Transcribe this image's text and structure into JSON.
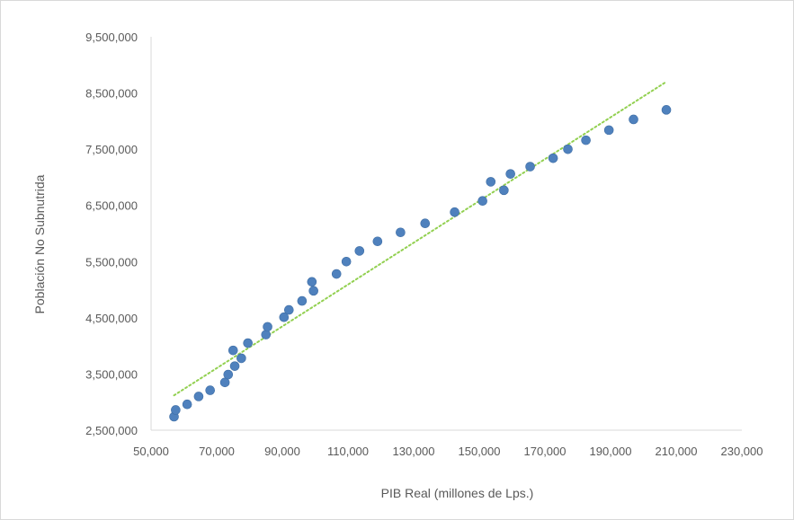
{
  "chart_data": {
    "type": "scatter",
    "title": "",
    "xlabel": "PIB Real (millones de Lps.)",
    "ylabel": "Población No Subnutrida",
    "xlim": [
      50000,
      230000
    ],
    "ylim": [
      2500000,
      9500000
    ],
    "x_ticks": [
      50000,
      70000,
      90000,
      110000,
      130000,
      150000,
      170000,
      190000,
      210000,
      230000
    ],
    "x_tick_labels": [
      "50,000",
      "70,000",
      "90,000",
      "110,000",
      "130,000",
      "150,000",
      "170,000",
      "190,000",
      "210,000",
      "230,000"
    ],
    "y_ticks": [
      2500000,
      3500000,
      4500000,
      5500000,
      6500000,
      7500000,
      8500000,
      9500000
    ],
    "y_tick_labels": [
      "2,500,000",
      "3,500,000",
      "4,500,000",
      "5,500,000",
      "6,500,000",
      "7,500,000",
      "8,500,000",
      "9,500,000"
    ],
    "grid": false,
    "legend": "none",
    "point_color": "#4f81bd",
    "trendline_color": "#92d050",
    "trendline": {
      "type": "linear",
      "start": [
        57000,
        3120000
      ],
      "end": [
        207000,
        8700000
      ]
    },
    "points": [
      {
        "x": 57000,
        "y": 2740000
      },
      {
        "x": 57500,
        "y": 2860000
      },
      {
        "x": 61000,
        "y": 2960000
      },
      {
        "x": 64500,
        "y": 3100000
      },
      {
        "x": 68000,
        "y": 3210000
      },
      {
        "x": 72500,
        "y": 3350000
      },
      {
        "x": 73500,
        "y": 3490000
      },
      {
        "x": 75500,
        "y": 3640000
      },
      {
        "x": 77500,
        "y": 3780000
      },
      {
        "x": 75000,
        "y": 3920000
      },
      {
        "x": 79500,
        "y": 4050000
      },
      {
        "x": 85000,
        "y": 4200000
      },
      {
        "x": 85500,
        "y": 4340000
      },
      {
        "x": 90500,
        "y": 4510000
      },
      {
        "x": 92000,
        "y": 4640000
      },
      {
        "x": 96000,
        "y": 4800000
      },
      {
        "x": 99500,
        "y": 4980000
      },
      {
        "x": 99000,
        "y": 5140000
      },
      {
        "x": 106500,
        "y": 5280000
      },
      {
        "x": 109500,
        "y": 5500000
      },
      {
        "x": 113500,
        "y": 5690000
      },
      {
        "x": 119000,
        "y": 5860000
      },
      {
        "x": 126000,
        "y": 6020000
      },
      {
        "x": 133500,
        "y": 6180000
      },
      {
        "x": 142500,
        "y": 6380000
      },
      {
        "x": 151000,
        "y": 6580000
      },
      {
        "x": 157500,
        "y": 6770000
      },
      {
        "x": 153500,
        "y": 6920000
      },
      {
        "x": 159500,
        "y": 7060000
      },
      {
        "x": 165500,
        "y": 7190000
      },
      {
        "x": 172500,
        "y": 7340000
      },
      {
        "x": 177000,
        "y": 7500000
      },
      {
        "x": 182500,
        "y": 7660000
      },
      {
        "x": 189500,
        "y": 7840000
      },
      {
        "x": 197000,
        "y": 8030000
      },
      {
        "x": 207000,
        "y": 8200000
      }
    ]
  }
}
